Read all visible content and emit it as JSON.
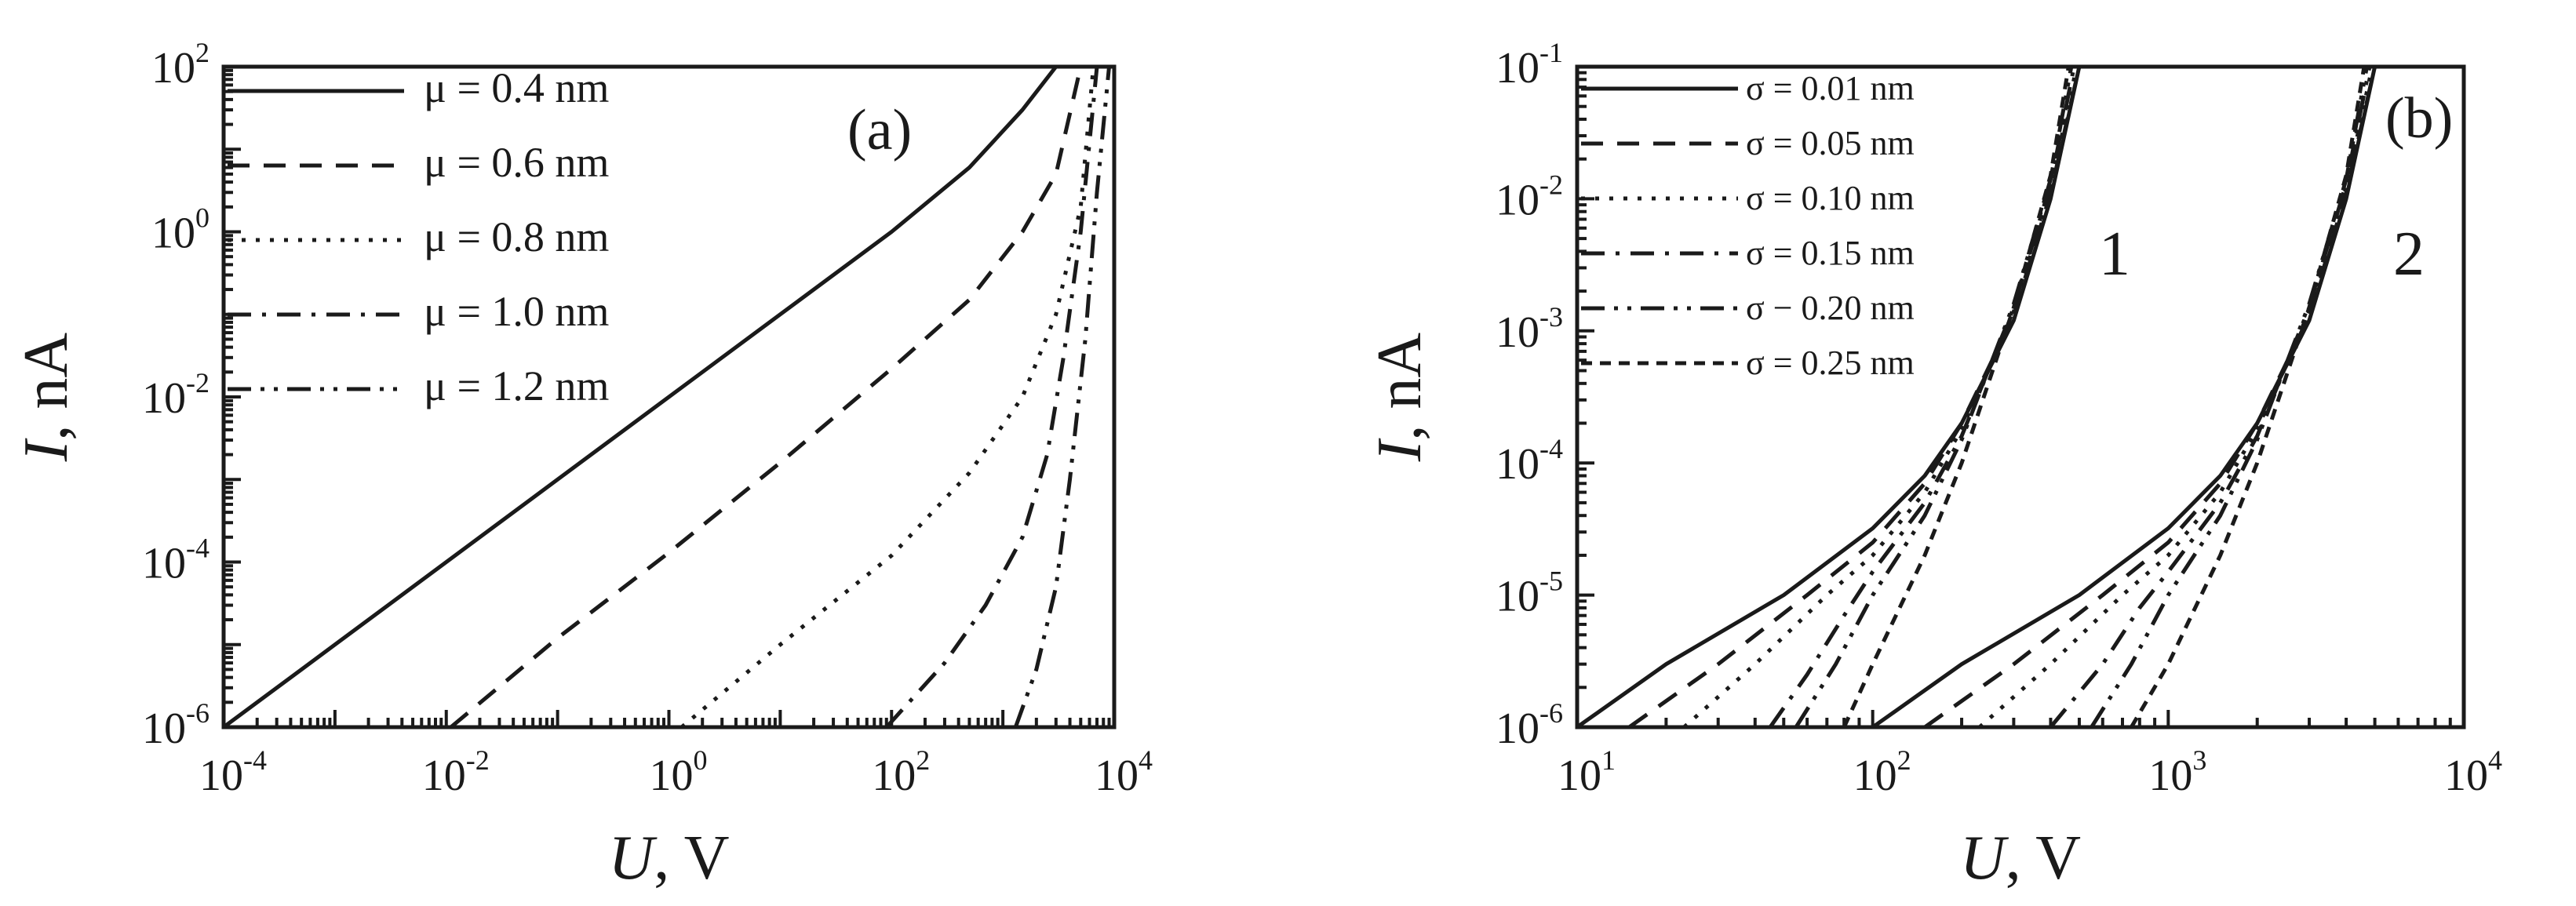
{
  "chart_data": [
    {
      "type": "line",
      "panel_label": "(a)",
      "xlabel": {
        "var": "U",
        "unit": ", V"
      },
      "ylabel": {
        "var": "I",
        "unit": ", nA"
      },
      "x_scale": "log",
      "y_scale": "log",
      "xlim": [
        0.0001,
        10000
      ],
      "ylim": [
        1e-06,
        100
      ],
      "x_ticks": [
        {
          "base": "10",
          "exp": "-4"
        },
        {
          "base": "10",
          "exp": "-2"
        },
        {
          "base": "10",
          "exp": "0"
        },
        {
          "base": "10",
          "exp": "2"
        },
        {
          "base": "10",
          "exp": "4"
        }
      ],
      "y_ticks": [
        {
          "base": "10",
          "exp": "-6"
        },
        {
          "base": "10",
          "exp": "-4"
        },
        {
          "base": "10",
          "exp": "-2"
        },
        {
          "base": "10",
          "exp": "0"
        },
        {
          "base": "10",
          "exp": "2"
        }
      ],
      "legend_position": "top-left",
      "series": [
        {
          "name": "μ = 0.4 nm",
          "dash": "solid",
          "points": [
            [
              0.0001,
              1e-06
            ],
            [
              0.001,
              1e-05
            ],
            [
              0.01,
              0.0001
            ],
            [
              0.1,
              0.001
            ],
            [
              1,
              0.01
            ],
            [
              10,
              0.1
            ],
            [
              100,
              1
            ],
            [
              500,
              6
            ],
            [
              1500,
              30
            ],
            [
              3000,
              100
            ]
          ]
        },
        {
          "name": "μ = 0.6 nm",
          "dash": "dashed",
          "points": [
            [
              0.011,
              1e-06
            ],
            [
              0.1,
              1.2e-05
            ],
            [
              1,
              0.00013
            ],
            [
              10,
              0.0016
            ],
            [
              100,
              0.022
            ],
            [
              500,
              0.15
            ],
            [
              1500,
              1
            ],
            [
              3000,
              5
            ],
            [
              5000,
              100
            ]
          ]
        },
        {
          "name": "μ = 0.8 nm",
          "dash": "dotted",
          "points": [
            [
              1.3,
              1e-06
            ],
            [
              10,
              1e-05
            ],
            [
              100,
              0.00012
            ],
            [
              500,
              0.0012
            ],
            [
              1500,
              0.01
            ],
            [
              3000,
              0.1
            ],
            [
              5000,
              2
            ],
            [
              6500,
              100
            ]
          ]
        },
        {
          "name": "μ = 1.0 nm",
          "dash": "dashdot",
          "points": [
            [
              90,
              1e-06
            ],
            [
              300,
              6e-06
            ],
            [
              700,
              3e-05
            ],
            [
              1500,
              0.0002
            ],
            [
              2500,
              0.002
            ],
            [
              3500,
              0.03
            ],
            [
              5000,
              1
            ],
            [
              7000,
              100
            ]
          ]
        },
        {
          "name": "μ = 1.2 nm",
          "dash": "dashdotdot",
          "points": [
            [
              1300,
              1e-06
            ],
            [
              2000,
              5e-06
            ],
            [
              3000,
              5e-05
            ],
            [
              4000,
              0.001
            ],
            [
              5500,
              0.05
            ],
            [
              7000,
              3
            ],
            [
              9000,
              100
            ]
          ]
        }
      ]
    },
    {
      "type": "line",
      "panel_label": "(b)",
      "xlabel": {
        "var": "U",
        "unit": ", V"
      },
      "ylabel": {
        "var": "I",
        "unit": ", nA"
      },
      "x_scale": "log",
      "y_scale": "log",
      "xlim": [
        10,
        10000
      ],
      "ylim": [
        1e-06,
        0.1
      ],
      "x_ticks": [
        {
          "base": "10",
          "exp": "1"
        },
        {
          "base": "10",
          "exp": "2"
        },
        {
          "base": "10",
          "exp": "3"
        },
        {
          "base": "10",
          "exp": "4"
        }
      ],
      "y_ticks": [
        {
          "base": "10",
          "exp": "-6"
        },
        {
          "base": "10",
          "exp": "-5"
        },
        {
          "base": "10",
          "exp": "-4"
        },
        {
          "base": "10",
          "exp": "-3"
        },
        {
          "base": "10",
          "exp": "-2"
        },
        {
          "base": "10",
          "exp": "-1"
        }
      ],
      "legend_position": "top-left",
      "group_labels": [
        "1",
        "2"
      ],
      "legend": [
        {
          "name": "σ = 0.01 nm",
          "dash": "solid"
        },
        {
          "name": "σ = 0.05 nm",
          "dash": "dashed"
        },
        {
          "name": "σ = 0.10 nm",
          "dash": "dotted"
        },
        {
          "name": "σ = 0.15 nm",
          "dash": "dashdot"
        },
        {
          "name": "σ − 0.20 nm",
          "dash": "dashdotdot"
        },
        {
          "name": "σ = 0.25 nm",
          "dash": "shortdash"
        }
      ],
      "series": [
        {
          "name": "σ = 0.01 nm",
          "group": "1",
          "dash": "solid",
          "points": [
            [
              10,
              1e-06
            ],
            [
              20,
              3e-06
            ],
            [
              50,
              1e-05
            ],
            [
              100,
              3.2e-05
            ],
            [
              150,
              8e-05
            ],
            [
              200,
              0.0002
            ],
            [
              300,
              0.0012
            ],
            [
              400,
              0.01
            ],
            [
              500,
              0.1
            ]
          ]
        },
        {
          "name": "σ = 0.05 nm",
          "group": "1",
          "dash": "dashed",
          "points": [
            [
              15,
              1e-06
            ],
            [
              30,
              3e-06
            ],
            [
              60,
              1e-05
            ],
            [
              100,
              2.5e-05
            ],
            [
              150,
              7e-05
            ],
            [
              200,
              0.0002
            ],
            [
              300,
              0.0013
            ],
            [
              400,
              0.011
            ],
            [
              500,
              0.1
            ]
          ]
        },
        {
          "name": "σ = 0.10 nm",
          "group": "1",
          "dash": "dotted",
          "points": [
            [
              23,
              1e-06
            ],
            [
              40,
              3e-06
            ],
            [
              70,
              1e-05
            ],
            [
              100,
              2e-05
            ],
            [
              150,
              6e-05
            ],
            [
              200,
              0.00018
            ],
            [
              300,
              0.0014
            ],
            [
              400,
              0.012
            ],
            [
              490,
              0.1
            ]
          ]
        },
        {
          "name": "σ = 0.15 nm",
          "group": "1",
          "dash": "dashdot",
          "points": [
            [
              45,
              1e-06
            ],
            [
              60,
              2.5e-06
            ],
            [
              80,
              7e-06
            ],
            [
              100,
              1.5e-05
            ],
            [
              150,
              5e-05
            ],
            [
              200,
              0.00016
            ],
            [
              300,
              0.0015
            ],
            [
              400,
              0.013
            ],
            [
              480,
              0.1
            ]
          ]
        },
        {
          "name": "σ − 0.20 nm",
          "group": "1",
          "dash": "dashdotdot",
          "points": [
            [
              55,
              1e-06
            ],
            [
              75,
              3e-06
            ],
            [
              100,
              1e-05
            ],
            [
              150,
              4e-05
            ],
            [
              200,
              0.00015
            ],
            [
              300,
              0.0016
            ],
            [
              400,
              0.014
            ],
            [
              470,
              0.1
            ]
          ]
        },
        {
          "name": "σ = 0.25 nm",
          "group": "1",
          "dash": "shortdash",
          "points": [
            [
              80,
              1e-06
            ],
            [
              100,
              3e-06
            ],
            [
              150,
              2e-05
            ],
            [
              200,
              0.0001
            ],
            [
              300,
              0.0015
            ],
            [
              400,
              0.015
            ],
            [
              460,
              0.1
            ]
          ]
        },
        {
          "name": "σ = 0.01 nm",
          "group": "2",
          "dash": "solid",
          "points": [
            [
              100,
              1e-06
            ],
            [
              200,
              3e-06
            ],
            [
              500,
              1e-05
            ],
            [
              1000,
              3.2e-05
            ],
            [
              1500,
              8e-05
            ],
            [
              2000,
              0.0002
            ],
            [
              3000,
              0.0012
            ],
            [
              4000,
              0.01
            ],
            [
              5000,
              0.1
            ]
          ]
        },
        {
          "name": "σ = 0.05 nm",
          "group": "2",
          "dash": "dashed",
          "points": [
            [
              150,
              1e-06
            ],
            [
              300,
              3e-06
            ],
            [
              600,
              1e-05
            ],
            [
              1000,
              2.5e-05
            ],
            [
              1500,
              7e-05
            ],
            [
              2000,
              0.0002
            ],
            [
              3000,
              0.0013
            ],
            [
              4000,
              0.011
            ],
            [
              5000,
              0.1
            ]
          ]
        },
        {
          "name": "σ = 0.10 nm",
          "group": "2",
          "dash": "dotted",
          "points": [
            [
              230,
              1e-06
            ],
            [
              400,
              3e-06
            ],
            [
              700,
              1e-05
            ],
            [
              1000,
              2e-05
            ],
            [
              1500,
              6e-05
            ],
            [
              2000,
              0.00018
            ],
            [
              3000,
              0.0014
            ],
            [
              4000,
              0.012
            ],
            [
              4900,
              0.1
            ]
          ]
        },
        {
          "name": "σ = 0.15 nm",
          "group": "2",
          "dash": "dashdot",
          "points": [
            [
              400,
              1e-06
            ],
            [
              600,
              3e-06
            ],
            [
              800,
              8e-06
            ],
            [
              1000,
              1.5e-05
            ],
            [
              1500,
              5e-05
            ],
            [
              2000,
              0.00016
            ],
            [
              3000,
              0.0015
            ],
            [
              4000,
              0.013
            ],
            [
              4800,
              0.1
            ]
          ]
        },
        {
          "name": "σ − 0.20 nm",
          "group": "2",
          "dash": "dashdotdot",
          "points": [
            [
              550,
              1e-06
            ],
            [
              750,
              3e-06
            ],
            [
              1000,
              1e-05
            ],
            [
              1500,
              4e-05
            ],
            [
              2000,
              0.00015
            ],
            [
              3000,
              0.0016
            ],
            [
              4000,
              0.014
            ],
            [
              4700,
              0.1
            ]
          ]
        },
        {
          "name": "σ = 0.25 nm",
          "group": "2",
          "dash": "shortdash",
          "points": [
            [
              750,
              1e-06
            ],
            [
              1000,
              3e-06
            ],
            [
              1500,
              2e-05
            ],
            [
              2000,
              0.0001
            ],
            [
              3000,
              0.0015
            ],
            [
              4000,
              0.015
            ],
            [
              4600,
              0.1
            ]
          ]
        }
      ]
    }
  ]
}
